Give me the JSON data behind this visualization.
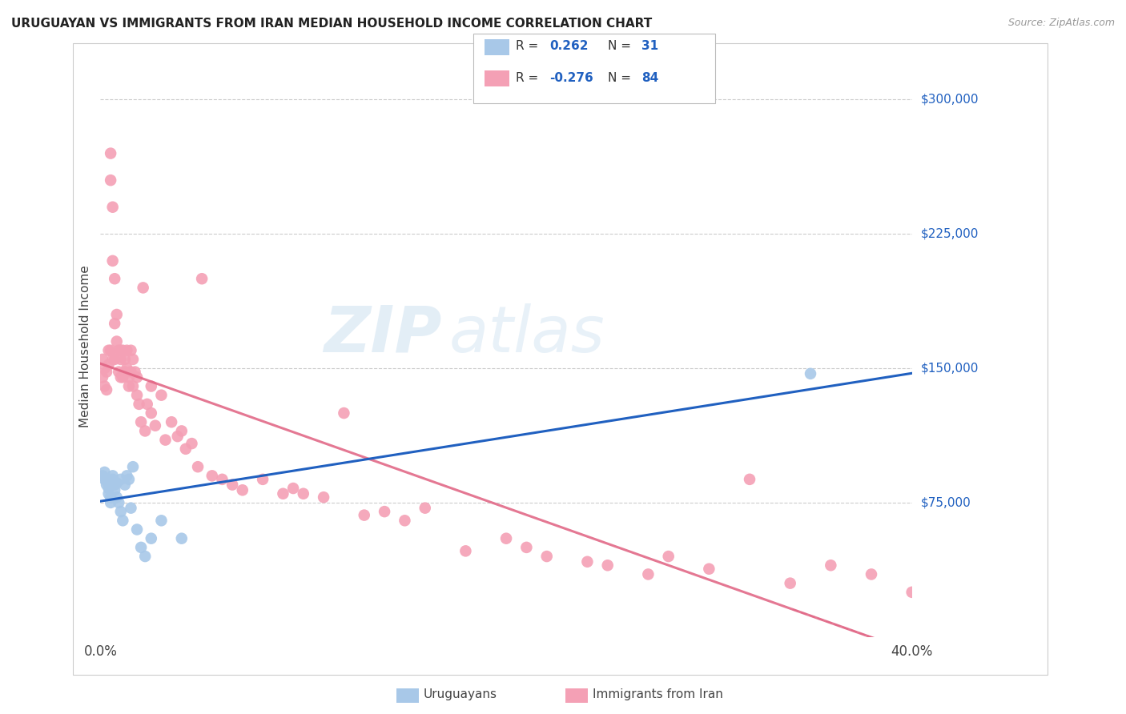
{
  "title": "URUGUAYAN VS IMMIGRANTS FROM IRAN MEDIAN HOUSEHOLD INCOME CORRELATION CHART",
  "source": "Source: ZipAtlas.com",
  "ylabel": "Median Household Income",
  "yticks": [
    75000,
    150000,
    225000,
    300000
  ],
  "ytick_labels": [
    "$75,000",
    "$150,000",
    "$225,000",
    "$300,000"
  ],
  "ylim": [
    0,
    325000
  ],
  "xlim": [
    0.0,
    0.4
  ],
  "legend_labels": [
    "Uruguayans",
    "Immigrants from Iran"
  ],
  "legend_R": [
    "0.262",
    "-0.276"
  ],
  "legend_N": [
    "31",
    "84"
  ],
  "blue_color": "#a8c8e8",
  "pink_color": "#f4a0b5",
  "blue_line_color": "#2060c0",
  "pink_line_color": "#e06080",
  "watermark_zip": "ZIP",
  "watermark_atlas": "atlas",
  "uruguayan_x": [
    0.001,
    0.002,
    0.002,
    0.003,
    0.003,
    0.004,
    0.004,
    0.005,
    0.005,
    0.006,
    0.006,
    0.007,
    0.007,
    0.008,
    0.008,
    0.009,
    0.01,
    0.01,
    0.011,
    0.012,
    0.013,
    0.014,
    0.015,
    0.016,
    0.018,
    0.02,
    0.022,
    0.025,
    0.03,
    0.04,
    0.35
  ],
  "uruguayan_y": [
    90000,
    88000,
    92000,
    85000,
    87000,
    80000,
    83000,
    78000,
    75000,
    90000,
    88000,
    85000,
    82000,
    86000,
    78000,
    75000,
    70000,
    88000,
    65000,
    85000,
    90000,
    88000,
    72000,
    95000,
    60000,
    50000,
    45000,
    55000,
    65000,
    55000,
    147000
  ],
  "iran_x": [
    0.001,
    0.001,
    0.002,
    0.002,
    0.003,
    0.003,
    0.004,
    0.004,
    0.005,
    0.005,
    0.005,
    0.006,
    0.006,
    0.006,
    0.007,
    0.007,
    0.007,
    0.008,
    0.008,
    0.009,
    0.009,
    0.01,
    0.01,
    0.01,
    0.011,
    0.011,
    0.012,
    0.012,
    0.013,
    0.013,
    0.014,
    0.014,
    0.015,
    0.015,
    0.016,
    0.016,
    0.017,
    0.018,
    0.018,
    0.019,
    0.02,
    0.021,
    0.022,
    0.023,
    0.025,
    0.025,
    0.027,
    0.03,
    0.032,
    0.035,
    0.038,
    0.04,
    0.042,
    0.045,
    0.048,
    0.05,
    0.055,
    0.06,
    0.065,
    0.07,
    0.08,
    0.09,
    0.095,
    0.1,
    0.11,
    0.12,
    0.13,
    0.14,
    0.15,
    0.16,
    0.18,
    0.2,
    0.21,
    0.22,
    0.24,
    0.25,
    0.27,
    0.28,
    0.3,
    0.32,
    0.34,
    0.36,
    0.38,
    0.4
  ],
  "iran_y": [
    155000,
    145000,
    150000,
    140000,
    138000,
    148000,
    160000,
    152000,
    270000,
    255000,
    160000,
    240000,
    155000,
    210000,
    200000,
    175000,
    155000,
    180000,
    165000,
    160000,
    148000,
    155000,
    145000,
    160000,
    160000,
    145000,
    148000,
    155000,
    160000,
    150000,
    145000,
    140000,
    148000,
    160000,
    155000,
    140000,
    148000,
    145000,
    135000,
    130000,
    120000,
    195000,
    115000,
    130000,
    125000,
    140000,
    118000,
    135000,
    110000,
    120000,
    112000,
    115000,
    105000,
    108000,
    95000,
    200000,
    90000,
    88000,
    85000,
    82000,
    88000,
    80000,
    83000,
    80000,
    78000,
    125000,
    68000,
    70000,
    65000,
    72000,
    48000,
    55000,
    50000,
    45000,
    42000,
    40000,
    35000,
    45000,
    38000,
    88000,
    30000,
    40000,
    35000,
    25000
  ]
}
